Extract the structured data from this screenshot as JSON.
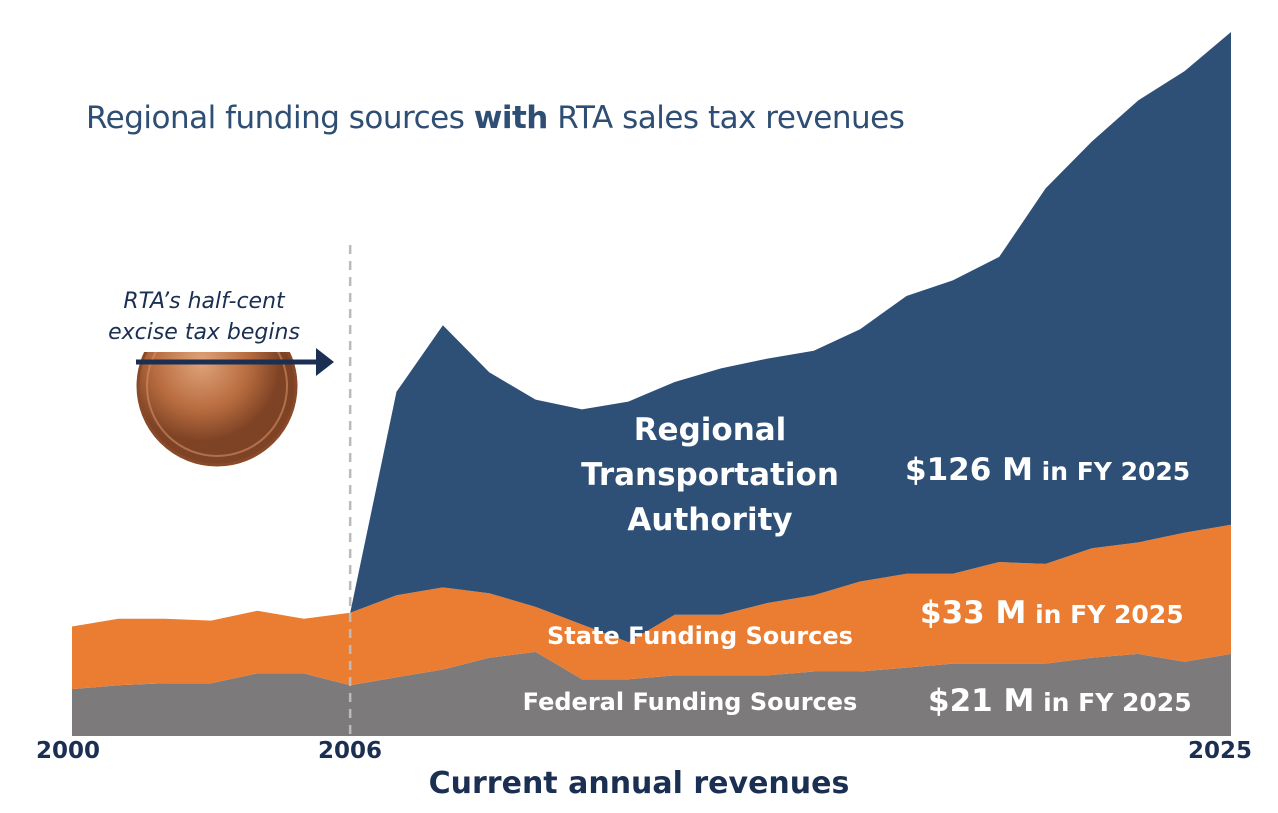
{
  "title": {
    "pre": "Regional funding sources ",
    "bold": "with",
    "post": " RTA sales tax revenues"
  },
  "annotation": {
    "line1": "RTA’s half-cent",
    "line2": "excise tax begins"
  },
  "series_labels": {
    "rta": [
      "Regional",
      "Transportation",
      "Authority"
    ],
    "state": "State Funding Sources",
    "federal": "Federal Funding Sources"
  },
  "value_labels": {
    "rta": {
      "amount": "$126 M",
      "suffix": " in FY 2025"
    },
    "state": {
      "amount": "$33 M",
      "suffix": " in FY 2025"
    },
    "federal": {
      "amount": "$21 M",
      "suffix": " in FY 2025"
    }
  },
  "colors": {
    "rta": "#2e5077",
    "state": "#eb7d32",
    "federal": "#7d7a7b",
    "text_dark": "#1b2f52",
    "coin": "#b46a3c",
    "divider": "#bbbbbb"
  },
  "chart_data": {
    "type": "area",
    "stacked": true,
    "x": [
      2000,
      2001,
      2002,
      2003,
      2004,
      2005,
      2006,
      2007,
      2008,
      2009,
      2010,
      2011,
      2012,
      2013,
      2014,
      2015,
      2016,
      2017,
      2018,
      2019,
      2020,
      2021,
      2022,
      2023,
      2024,
      2025
    ],
    "xticks": [
      "2000",
      "2006",
      "2025"
    ],
    "xlabel": "Current annual revenues",
    "ylabel": "",
    "series": [
      {
        "name": "Federal Funding Sources",
        "values": [
          12,
          13,
          13.5,
          13.5,
          16,
          16,
          13,
          15,
          17,
          20,
          21.5,
          14.5,
          14.5,
          15.5,
          15.5,
          15.5,
          16.5,
          16.5,
          17.5,
          18.5,
          18.5,
          18.5,
          20,
          21,
          19,
          21
        ]
      },
      {
        "name": "State Funding Sources",
        "values": [
          16,
          17,
          16.5,
          16,
          16,
          14,
          18.5,
          21,
          21,
          16.5,
          11.5,
          14,
          9.5,
          15.5,
          15.5,
          18.5,
          19.5,
          23,
          24,
          23,
          26,
          25.5,
          28,
          28.5,
          33,
          33
        ]
      },
      {
        "name": "Regional Transportation Authority",
        "values": [
          0,
          0,
          0,
          0,
          0,
          0,
          0,
          52,
          67,
          56.5,
          53,
          55,
          61.5,
          59.5,
          63,
          62.5,
          62.5,
          64.5,
          71,
          75,
          78,
          96,
          104,
          113,
          118,
          126
        ]
      }
    ],
    "ylim": [
      0,
      180
    ],
    "unit": "$ M",
    "marker_year": 2006
  }
}
